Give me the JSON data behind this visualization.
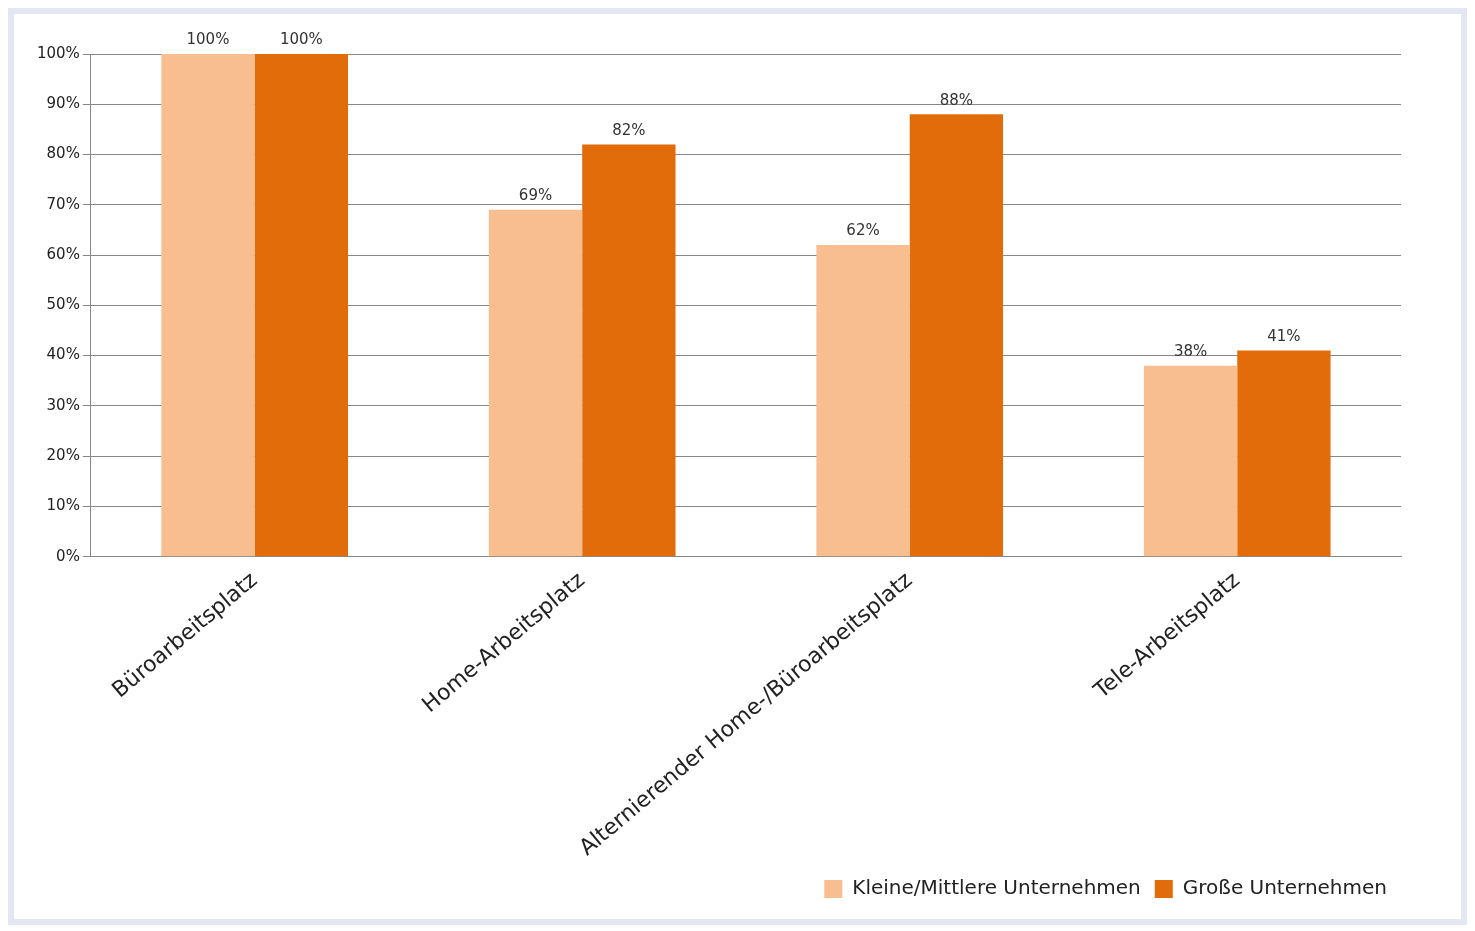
{
  "chart_data": {
    "type": "bar",
    "categories": [
      "Büroarbeitsplatz",
      "Home-Arbeitsplatz",
      "Alternierender Home-/Büroarbeitsplatz",
      "Tele-Arbeitsplatz"
    ],
    "series": [
      {
        "name": "Kleine/Mittlere Unternehmen",
        "color": "#f9be8f",
        "values": [
          100,
          69,
          62,
          38
        ],
        "value_labels": [
          "100%",
          "69%",
          "62%",
          "38%"
        ]
      },
      {
        "name": "Große Unternehmen",
        "color": "#e36c0a",
        "values": [
          100,
          82,
          88,
          41
        ],
        "value_labels": [
          "100%",
          "82%",
          "88%",
          "41%"
        ]
      }
    ],
    "ylim": [
      0,
      100
    ],
    "yticks": [
      {
        "value": 0,
        "label": "0%"
      },
      {
        "value": 10,
        "label": "10%"
      },
      {
        "value": 20,
        "label": "20%"
      },
      {
        "value": 30,
        "label": "30%"
      },
      {
        "value": 40,
        "label": "40%"
      },
      {
        "value": 50,
        "label": "50%"
      },
      {
        "value": 60,
        "label": "60%"
      },
      {
        "value": 70,
        "label": "70%"
      },
      {
        "value": 80,
        "label": "80%"
      },
      {
        "value": 90,
        "label": "90%"
      },
      {
        "value": 100,
        "label": "100%"
      }
    ],
    "grid": "y",
    "legend": "bottom right"
  }
}
